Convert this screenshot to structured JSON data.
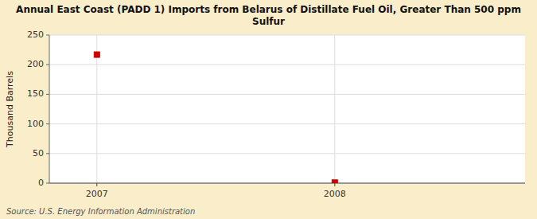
{
  "chart_data": {
    "type": "scatter",
    "title": "Annual East Coast (PADD 1) Imports from Belarus of Distillate Fuel Oil, Greater Than 500 ppm\nSulfur",
    "y_label": "Thousand Barrels",
    "source": "Source: U.S. Energy Information Administration",
    "x": [
      2007,
      2008
    ],
    "values": [
      217,
      1
    ],
    "color": "#cc0000",
    "marker": "square",
    "xlim": [
      2006.8,
      2008.8
    ],
    "xticks": [
      2007,
      2008
    ],
    "ylim": [
      0,
      250
    ],
    "yticks": [
      0,
      50,
      100,
      150,
      200,
      250
    ],
    "grid": true
  }
}
